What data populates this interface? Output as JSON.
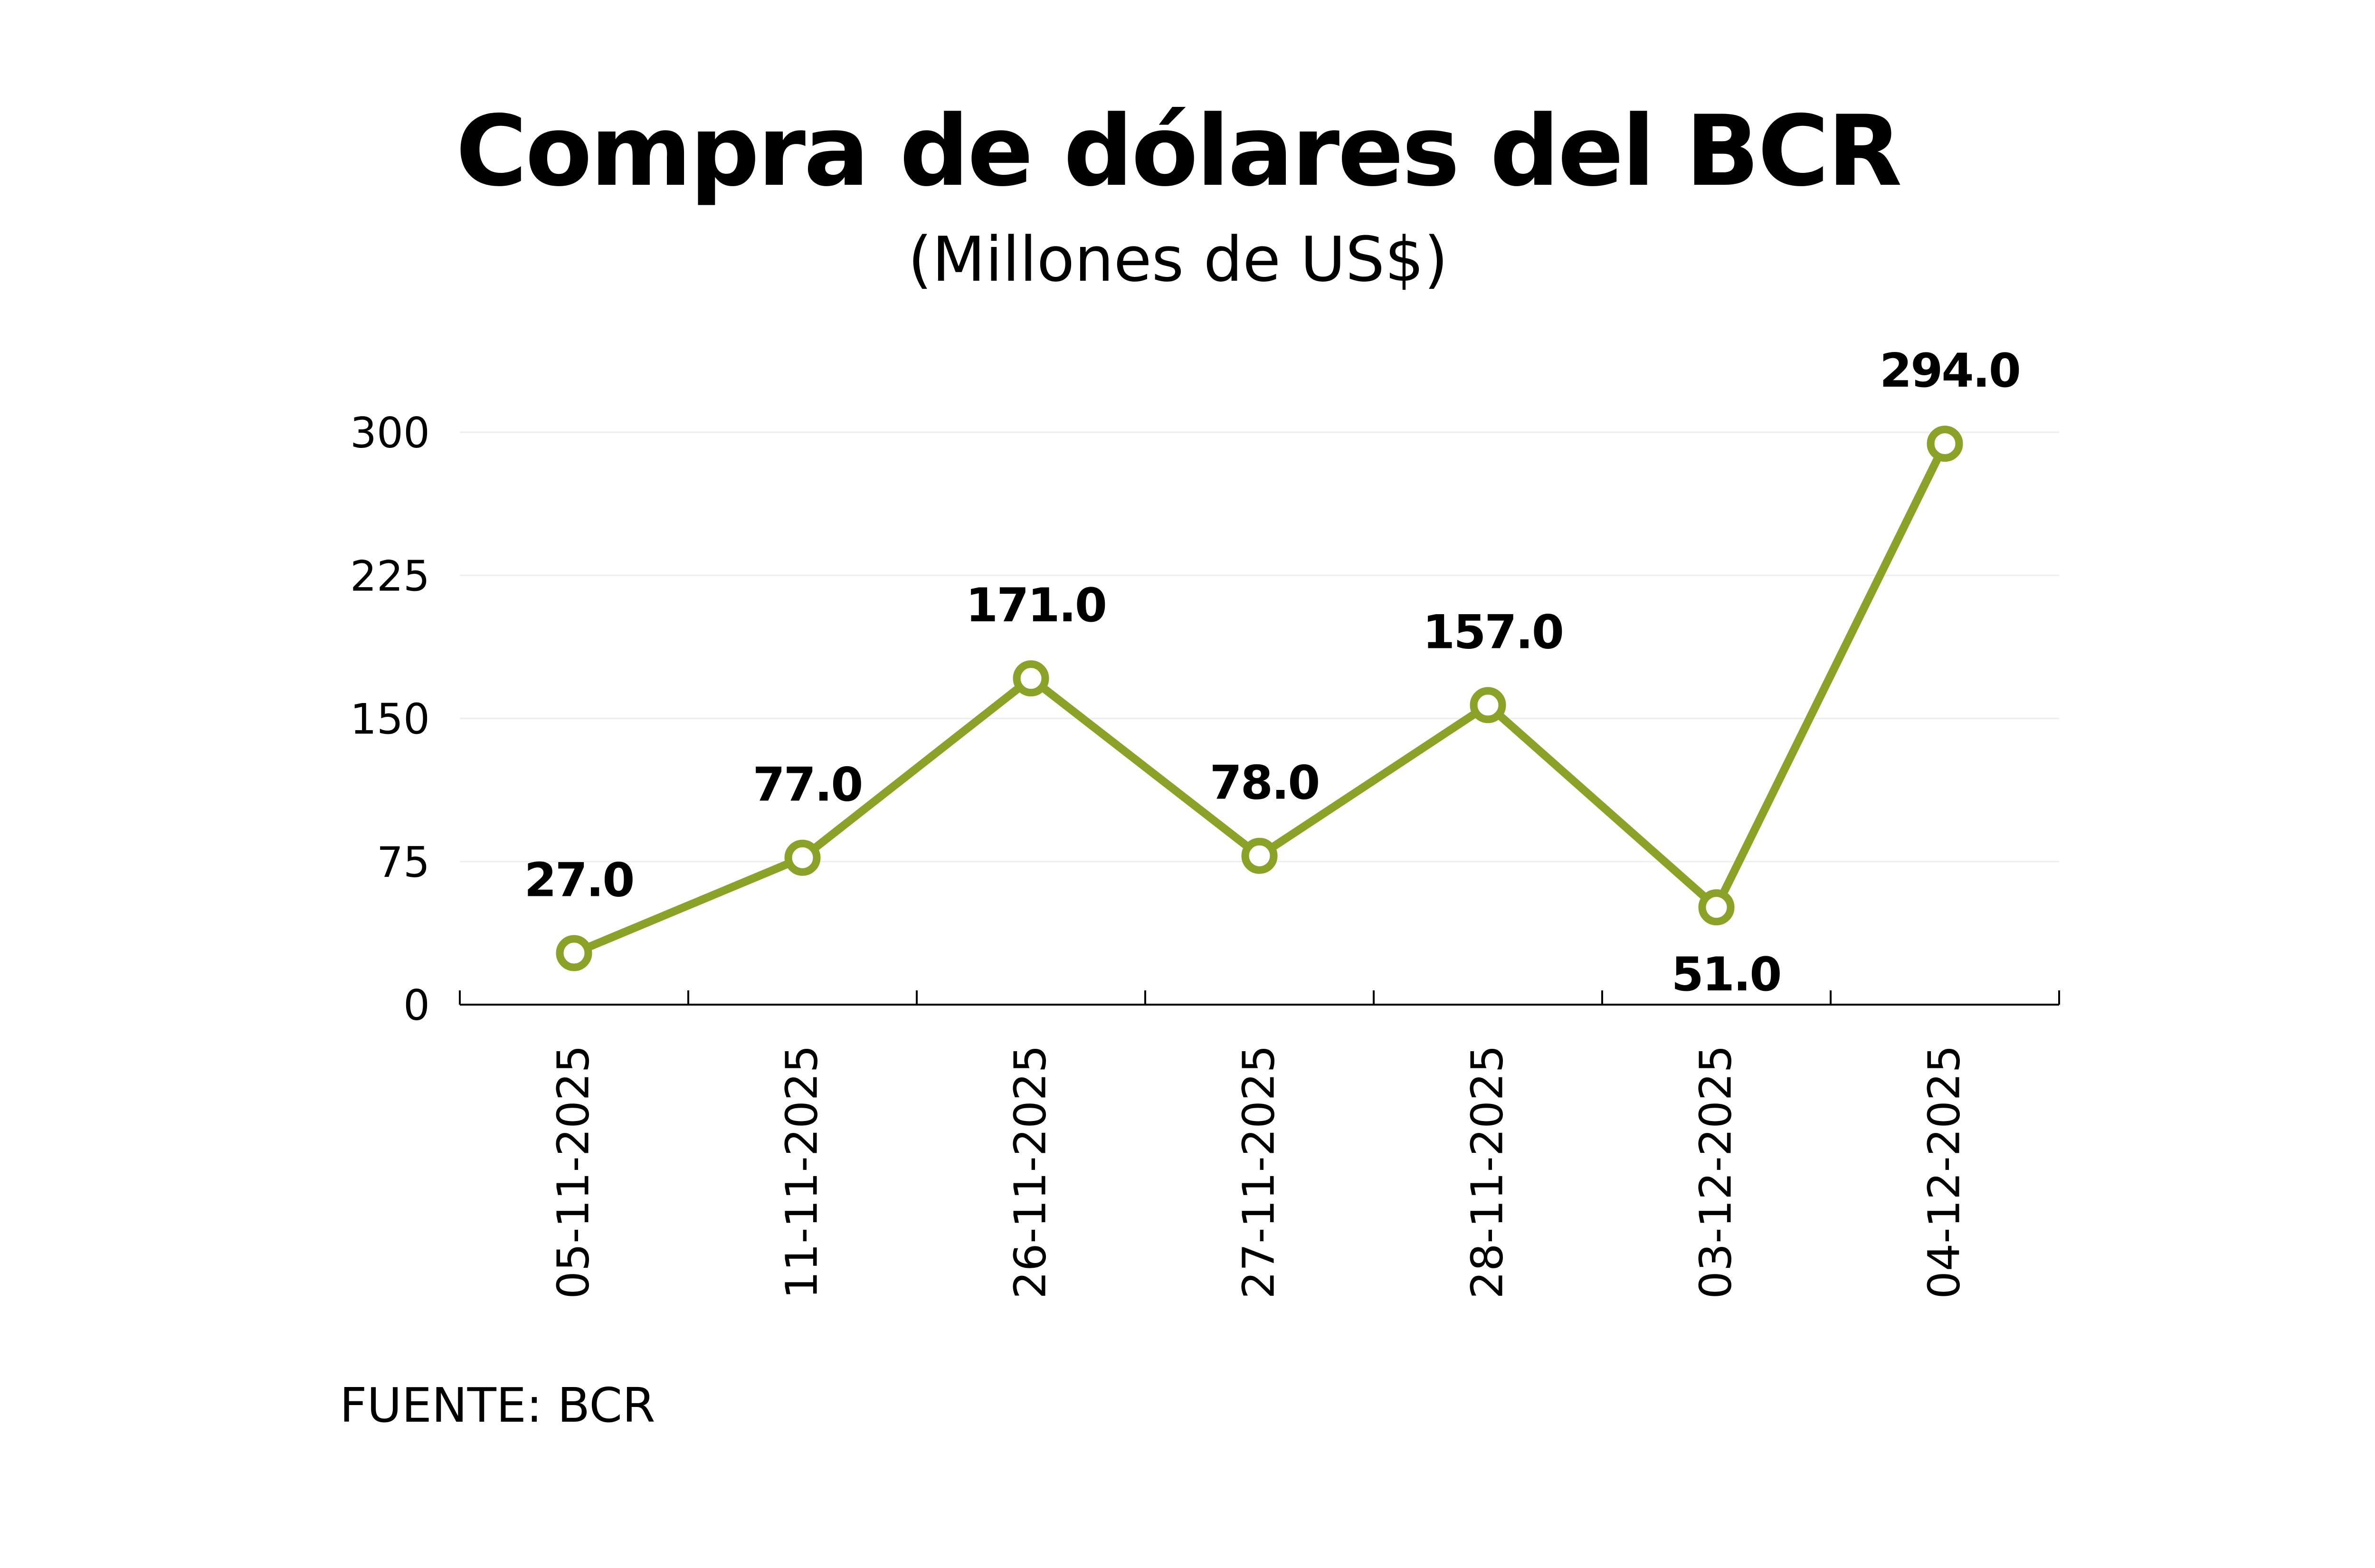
{
  "chart_data": {
    "type": "line",
    "title": "Compra de dólares del BCR",
    "subtitle": "(Millones de US$)",
    "source": "FUENTE: BCR",
    "xlabel": "",
    "ylabel": "",
    "categories": [
      "05-11-2025",
      "11-11-2025",
      "26-11-2025",
      "27-11-2025",
      "28-11-2025",
      "03-12-2025",
      "04-12-2025"
    ],
    "values": [
      27.0,
      77.0,
      171.0,
      78.0,
      157.0,
      51.0,
      294.0
    ],
    "data_labels": [
      "27.0",
      "77.0",
      "171.0",
      "78.0",
      "157.0",
      "51.0",
      "294.0"
    ],
    "ylim": [
      0,
      300
    ],
    "yticks": [
      0,
      75,
      150,
      225,
      300
    ],
    "grid": true,
    "legend": "none",
    "colors": {
      "line": "#8BA228",
      "marker_fill": "#ffffff",
      "grid": "#eeeeee",
      "axis": "#000000"
    }
  }
}
